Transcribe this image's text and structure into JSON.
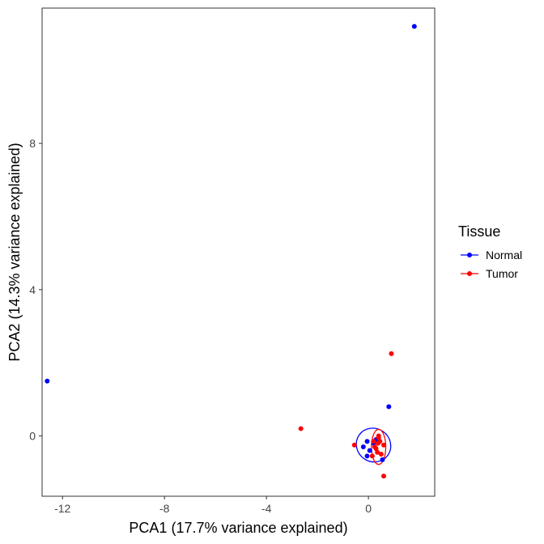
{
  "chart_data": {
    "type": "scatter",
    "xlabel": "PCA1 (17.7% variance explained)",
    "ylabel": "PCA2 (14.3% variance explained)",
    "xlim": [
      -12.8,
      2.6
    ],
    "ylim": [
      -1.65,
      11.7
    ],
    "x_ticks": [
      -12,
      -8,
      -4,
      0
    ],
    "y_ticks": [
      0,
      4,
      8
    ],
    "grid": false,
    "legend": {
      "title": "Tissue",
      "position": "right"
    },
    "series": [
      {
        "name": "Normal",
        "color": "#0000FF",
        "points": [
          [
            1.8,
            11.2
          ],
          [
            -12.6,
            1.5
          ],
          [
            0.8,
            0.8
          ],
          [
            0.55,
            -0.65
          ],
          [
            -0.05,
            -0.15
          ],
          [
            -0.2,
            -0.3
          ],
          [
            0.05,
            -0.4
          ],
          [
            0.2,
            -0.2
          ],
          [
            -0.05,
            -0.55
          ],
          [
            0.3,
            -0.1
          ]
        ],
        "ellipse": {
          "cx": 0.2,
          "cy": -0.25,
          "rx": 0.65,
          "ry": 0.48,
          "angle_deg": -55
        }
      },
      {
        "name": "Tumor",
        "color": "#FF0000",
        "points": [
          [
            0.9,
            2.25
          ],
          [
            -2.65,
            0.2
          ],
          [
            -0.55,
            -0.25
          ],
          [
            0.6,
            -1.1
          ],
          [
            0.4,
            0.0
          ],
          [
            0.38,
            -0.2
          ],
          [
            0.35,
            -0.45
          ],
          [
            0.5,
            -0.5
          ],
          [
            0.6,
            -0.25
          ],
          [
            0.25,
            -0.3
          ],
          [
            0.15,
            -0.55
          ],
          [
            0.4,
            -0.05
          ],
          [
            0.3,
            -0.35
          ],
          [
            0.45,
            -0.15
          ],
          [
            0.2,
            -0.15
          ]
        ],
        "ellipse": {
          "cx": 0.4,
          "cy": -0.3,
          "rx": 0.28,
          "ry": 0.48,
          "angle_deg": 0
        }
      }
    ]
  }
}
